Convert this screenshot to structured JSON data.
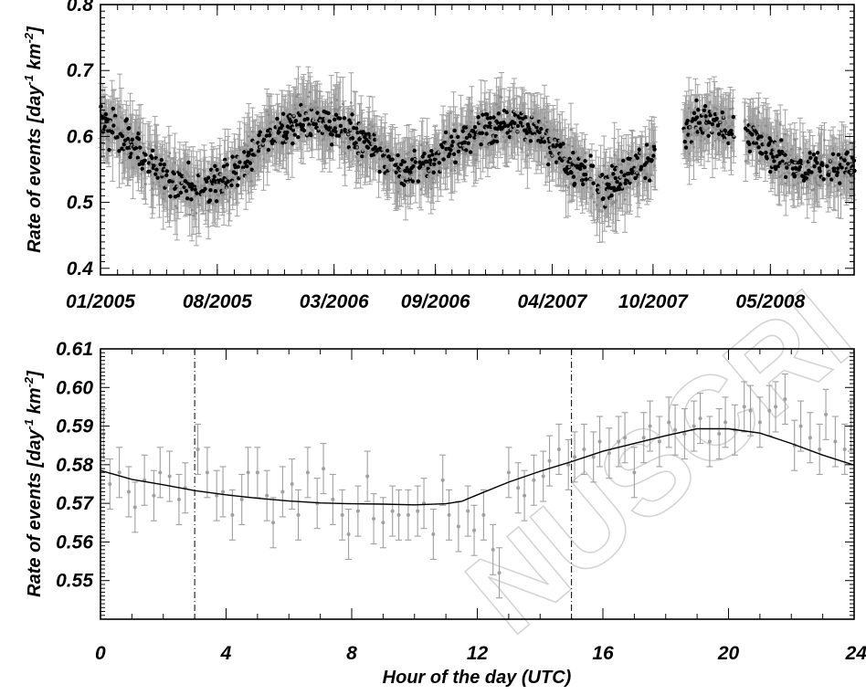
{
  "chart_data": [
    {
      "type": "scatter",
      "ylabel_main": "Rate of events [day",
      "ylabel_sup1": "-1",
      "ylabel_mid": " km",
      "ylabel_sup2": "-2",
      "ylabel_end": "]",
      "xlabel": "",
      "ylim": [
        0.39,
        0.8
      ],
      "yticks": [
        "0.4",
        "0.5",
        "0.6",
        "0.7",
        "0.8"
      ],
      "ytick_values": [
        0.4,
        0.5,
        0.6,
        0.7,
        0.8
      ],
      "xlim": [
        "2005-01-01",
        "2008-09-30"
      ],
      "xticks": [
        "01/2005",
        "08/2005",
        "03/2006",
        "09/2006",
        "04/2007",
        "10/2007",
        "05/2008"
      ],
      "xtick_dates": [
        "2005-01-01",
        "2005-08-01",
        "2006-03-01",
        "2006-09-01",
        "2007-04-01",
        "2007-10-01",
        "2008-05-01"
      ],
      "colors": {
        "points": "#000000",
        "errorbars": "#a0a0a0"
      },
      "series": [
        {
          "trend": [
            [
              "2005-01-01",
              0.62
            ],
            [
              "2005-02-15",
              0.6
            ],
            [
              "2005-04-01",
              0.56
            ],
            [
              "2005-05-20",
              0.53
            ],
            [
              "2005-07-15",
              0.52
            ],
            [
              "2005-09-15",
              0.55
            ],
            [
              "2005-11-01",
              0.6
            ],
            [
              "2006-01-01",
              0.625
            ],
            [
              "2006-03-01",
              0.62
            ],
            [
              "2006-05-01",
              0.59
            ],
            [
              "2006-07-01",
              0.545
            ],
            [
              "2006-09-01",
              0.565
            ],
            [
              "2006-11-01",
              0.6
            ],
            [
              "2007-01-01",
              0.625
            ],
            [
              "2007-03-01",
              0.61
            ],
            [
              "2007-05-01",
              0.56
            ],
            [
              "2007-07-01",
              0.52
            ],
            [
              "2007-09-01",
              0.55
            ],
            [
              "2007-10-15",
              0.58
            ],
            [
              "2007-12-15",
              0.62
            ],
            [
              "2008-02-01",
              0.62
            ],
            [
              "2008-04-01",
              0.6
            ],
            [
              "2008-06-15",
              0.55
            ],
            [
              "2008-09-30",
              0.555
            ]
          ],
          "gaps": [
            [
              "2007-10-05",
              "2007-11-25"
            ],
            [
              "2008-02-25",
              "2008-03-15"
            ]
          ]
        }
      ]
    },
    {
      "type": "scatter",
      "ylabel_main": "Rate of events [day",
      "ylabel_sup1": "-1",
      "ylabel_mid": " km",
      "ylabel_sup2": "-2",
      "ylabel_end": "]",
      "xlabel": "Hour of the day (UTC)",
      "xlim": [
        0,
        24
      ],
      "ylim": [
        0.54,
        0.61
      ],
      "xticks": [
        "0",
        "4",
        "8",
        "12",
        "16",
        "20",
        "24"
      ],
      "yticks": [
        "0.55",
        "0.56",
        "0.57",
        "0.58",
        "0.59",
        "0.60",
        "0.61"
      ],
      "vlines": [
        3,
        15
      ],
      "colors": {
        "points": "#a0a0a0",
        "fit": "#000000"
      },
      "series": [
        {
          "x": [
            0.1,
            0.3,
            0.6,
            0.9,
            1.1,
            1.4,
            1.7,
            1.9,
            2.2,
            2.5,
            2.7,
            3.1,
            3.4,
            3.7,
            3.9,
            4.2,
            4.5,
            4.7,
            5.0,
            5.3,
            5.5,
            5.8,
            6.1,
            6.3,
            6.6,
            6.9,
            7.1,
            7.4,
            7.7,
            7.9,
            8.2,
            8.5,
            8.7,
            9.0,
            9.3,
            9.5,
            9.8,
            10.1,
            10.3,
            10.6,
            10.9,
            11.1,
            11.4,
            11.7,
            11.9,
            12.2,
            12.5,
            12.7,
            13.0,
            13.3,
            13.5,
            13.8,
            14.1,
            14.3,
            14.6,
            14.9,
            15.1,
            15.4,
            15.7,
            15.9,
            16.2,
            16.5,
            16.7,
            17.0,
            17.3,
            17.5,
            17.8,
            18.1,
            18.3,
            18.6,
            18.9,
            19.1,
            19.4,
            19.7,
            19.9,
            20.2,
            20.5,
            20.7,
            21.0,
            21.3,
            21.5,
            21.8,
            22.1,
            22.3,
            22.6,
            22.9,
            23.1,
            23.4,
            23.7,
            23.9
          ],
          "y": [
            0.588,
            0.575,
            0.578,
            0.573,
            0.569,
            0.576,
            0.572,
            0.578,
            0.577,
            0.571,
            0.574,
            0.584,
            0.578,
            0.572,
            0.573,
            0.567,
            0.571,
            0.578,
            0.578,
            0.572,
            0.565,
            0.573,
            0.575,
            0.567,
            0.578,
            0.57,
            0.579,
            0.571,
            0.567,
            0.562,
            0.568,
            0.577,
            0.566,
            0.565,
            0.568,
            0.567,
            0.567,
            0.568,
            0.57,
            0.562,
            0.576,
            0.567,
            0.564,
            0.568,
            0.563,
            0.567,
            0.558,
            0.552,
            0.578,
            0.574,
            0.572,
            0.576,
            0.577,
            0.581,
            0.584,
            0.58,
            0.582,
            0.584,
            0.582,
            0.586,
            0.583,
            0.586,
            0.587,
            0.578,
            0.587,
            0.59,
            0.586,
            0.591,
            0.589,
            0.588,
            0.59,
            0.592,
            0.586,
            0.588,
            0.591,
            0.589,
            0.595,
            0.594,
            0.591,
            0.594,
            0.595,
            0.597,
            0.585,
            0.59,
            0.587,
            0.584,
            0.593,
            0.586,
            0.584,
            0.59
          ],
          "err": 0.0065,
          "fit_x": [
            0,
            1,
            2,
            3,
            4,
            5,
            6,
            7,
            8,
            9,
            10,
            11,
            11.5,
            12,
            13,
            14,
            15,
            16,
            17,
            18,
            19,
            20,
            21,
            22,
            23,
            24
          ],
          "fit_y": [
            0.5785,
            0.5762,
            0.5748,
            0.5733,
            0.5722,
            0.5713,
            0.5706,
            0.5701,
            0.5699,
            0.5698,
            0.5696,
            0.5699,
            0.5705,
            0.5722,
            0.5755,
            0.5783,
            0.5808,
            0.5835,
            0.5855,
            0.5875,
            0.5893,
            0.5893,
            0.5882,
            0.5855,
            0.5825,
            0.5799
          ]
        }
      ]
    }
  ]
}
